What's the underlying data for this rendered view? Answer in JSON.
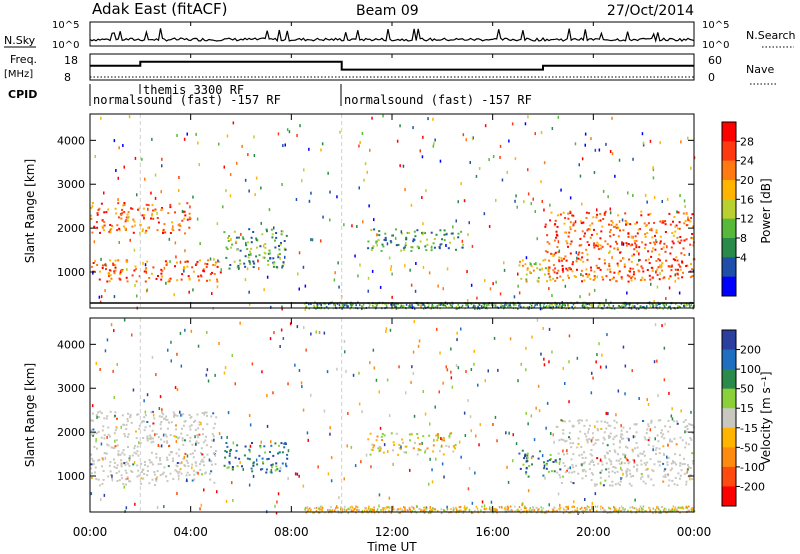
{
  "header": {
    "station": "Adak East (fitACF)",
    "beam": "Beam 09",
    "date": "27/Oct/2014"
  },
  "panels": {
    "nsky_label": "N.Sky",
    "nsky_ticks": [
      "10^5",
      "10^0"
    ],
    "nsearch_label": "N.Search",
    "nsearch_ticks": [
      "10^5",
      "10^0"
    ],
    "freq_label": "Freq.",
    "freq_unit": "[MHz]",
    "freq_ticks": [
      "18",
      "8"
    ],
    "nave_label": "Nave",
    "nave_ticks": [
      "60",
      "0"
    ],
    "cpid_label": "CPID"
  },
  "cpid_segments": [
    {
      "label": "normalsound (fast) -157 RF",
      "start_hour": 0
    },
    {
      "label": "themis 3300 RF",
      "start_hour": 2
    },
    {
      "label": "normalsound (fast) -157 RF",
      "start_hour": 10
    }
  ],
  "xaxis": {
    "label": "Time UT",
    "ticks": [
      "00:00",
      "04:00",
      "08:00",
      "12:00",
      "16:00",
      "20:00",
      "00:00"
    ]
  },
  "yaxis": {
    "label": "Slant Range [km]",
    "ticks": [
      "1000",
      "2000",
      "3000",
      "4000"
    ]
  },
  "power_scale": {
    "label": "Power [dB]",
    "ticks": [
      "4",
      "8",
      "12",
      "16",
      "20",
      "24",
      "28"
    ],
    "colors": [
      "#0000ff",
      "#1f4fa8",
      "#2a8a4a",
      "#58b83a",
      "#b8d030",
      "#ffb400",
      "#ff7a10",
      "#ff3a10",
      "#ff0000"
    ]
  },
  "velocity_scale": {
    "label": "Velocity [m s⁻¹]",
    "ticks": [
      "200",
      "100",
      "50",
      "15",
      "-15",
      "-50",
      "-100",
      "-200"
    ],
    "colors": [
      "#2b3f9e",
      "#1e6fbf",
      "#2a8a4a",
      "#8ad03a",
      "#c8c8c0",
      "#ffb400",
      "#ff8a10",
      "#ff4a10",
      "#ff0000"
    ]
  },
  "chart_data": {
    "type": "heatmap",
    "x_range_hours": [
      0,
      24
    ],
    "y_range_km": [
      180,
      4600
    ],
    "frequency_mhz_series": [
      {
        "hour": 0,
        "value": 13.5
      },
      {
        "hour": 2,
        "value": 15
      },
      {
        "hour": 10,
        "value": 12
      },
      {
        "hour": 18,
        "value": 13.5
      },
      {
        "hour": 24,
        "value": 13.5
      }
    ],
    "power_regions": [
      {
        "t0": 0,
        "t1": 5.2,
        "r0": 800,
        "r1": 1300,
        "level": "high"
      },
      {
        "t0": 0,
        "t1": 4.0,
        "r0": 1900,
        "r1": 2600,
        "level": "high"
      },
      {
        "t0": 5.3,
        "t1": 7.8,
        "r0": 1100,
        "r1": 2000,
        "level": "low"
      },
      {
        "t0": 11.0,
        "t1": 14.8,
        "r0": 1500,
        "r1": 2000,
        "level": "low"
      },
      {
        "t0": 17.0,
        "t1": 18.5,
        "r0": 800,
        "r1": 1300,
        "level": "mid"
      },
      {
        "t0": 18.0,
        "t1": 24,
        "r0": 800,
        "r1": 2400,
        "level": "high"
      }
    ],
    "velocity_regions": [
      {
        "t0": 0,
        "t1": 5.0,
        "r0": 800,
        "r1": 2500,
        "class": "ground"
      },
      {
        "t0": 5.3,
        "t1": 7.8,
        "r0": 1100,
        "r1": 1800,
        "class": "positive"
      },
      {
        "t0": 11.0,
        "t1": 14.5,
        "r0": 1500,
        "r1": 2000,
        "class": "mixed"
      },
      {
        "t0": 17.0,
        "t1": 18.5,
        "r0": 1000,
        "r1": 1600,
        "class": "positive"
      },
      {
        "t0": 18.5,
        "t1": 24,
        "r0": 800,
        "r1": 2300,
        "class": "ground"
      }
    ]
  }
}
